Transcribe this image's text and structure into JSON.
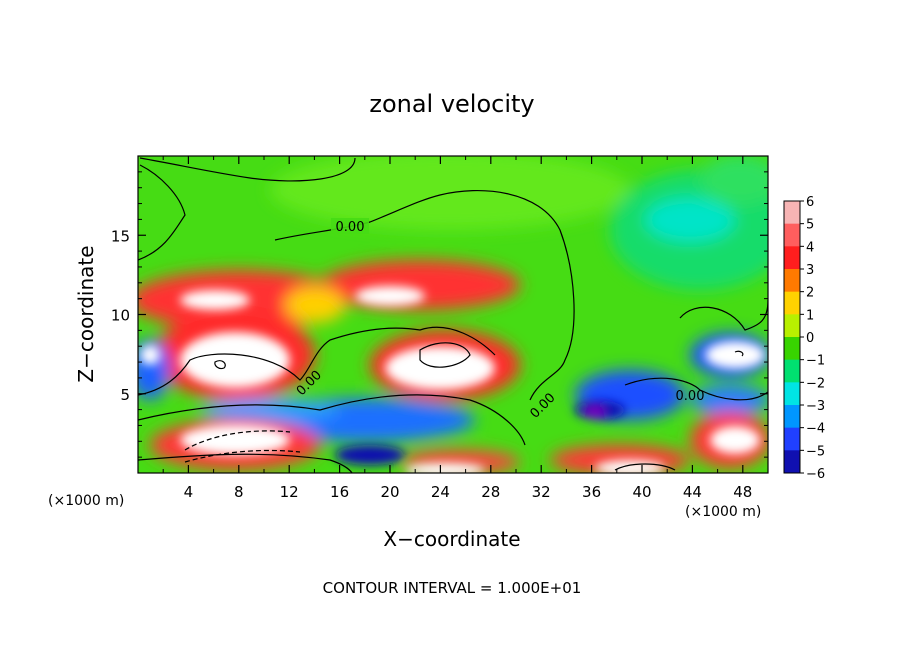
{
  "chart_data": {
    "type": "heatmap",
    "title": "zonal velocity",
    "xlabel": "X−coordinate",
    "ylabel": "Z−coordinate",
    "x_unit_left": "(×1000 m)",
    "x_unit_right": "(×1000 m)",
    "xlim": [
      0,
      50
    ],
    "ylim": [
      0,
      20
    ],
    "x_ticks": [
      4,
      8,
      12,
      16,
      20,
      24,
      28,
      32,
      36,
      40,
      44,
      48
    ],
    "x_tick_labels": [
      "4",
      "8",
      "12",
      "16",
      "20",
      "24",
      "28",
      "32",
      "36",
      "40",
      "44",
      "48"
    ],
    "y_ticks": [
      5,
      10,
      15
    ],
    "y_tick_labels": [
      "5",
      "10",
      "15"
    ],
    "colorbar": {
      "levels": [
        6,
        5,
        4,
        3,
        2,
        1,
        0,
        -1,
        -2,
        -3,
        -4,
        -5,
        -6
      ],
      "labels": [
        "6",
        "5",
        "4",
        "3",
        "2",
        "1",
        "0",
        "−1",
        "−2",
        "−3",
        "−4",
        "−5",
        "−6"
      ],
      "colors": [
        "#f7b4b4",
        "#ff5e5e",
        "#ff1e1e",
        "#ff7a00",
        "#ffd200",
        "#b8f000",
        "#38d400",
        "#00e070",
        "#00e4e4",
        "#0096ff",
        "#2040ff",
        "#1010b0",
        "#8000c0"
      ]
    },
    "contour_labels": [
      "0.00",
      "0.00",
      "0.00",
      "0.00"
    ],
    "footer": "CONTOUR INTERVAL = 1.000E+01"
  }
}
